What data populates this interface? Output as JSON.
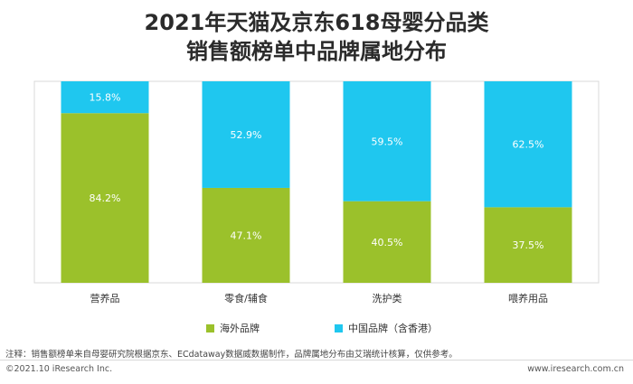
{
  "title_line1": "2021年天猫及京东618母婴分品类",
  "title_line2": "销售额榜单中品牌属地分布",
  "colors": {
    "overseas": "#9bc12b",
    "china": "#1fc7ef"
  },
  "chart_data": {
    "type": "bar",
    "stacked": true,
    "categories": [
      "营养品",
      "零食/辅食",
      "洗护类",
      "喂养用品"
    ],
    "series": [
      {
        "name": "海外品牌",
        "values": [
          84.2,
          47.1,
          40.5,
          37.5
        ],
        "labels": [
          "84.2%",
          "47.1%",
          "40.5%",
          "37.5%"
        ]
      },
      {
        "name": "中国品牌（含香港）",
        "values": [
          15.8,
          52.9,
          59.5,
          62.5
        ],
        "labels": [
          "15.8%",
          "52.9%",
          "59.5%",
          "62.5%"
        ]
      }
    ],
    "ylim": [
      0,
      100
    ],
    "legend": "bottom",
    "grid": false
  },
  "note": "注释：销售额榜单来自母婴研究院根据京东、ECdataway数据威数据制作，品牌属地分布由艾瑞统计核算，仅供参考。",
  "footer_left": "©2021.10 iResearch Inc.",
  "footer_right": "www.iresearch.com.cn"
}
